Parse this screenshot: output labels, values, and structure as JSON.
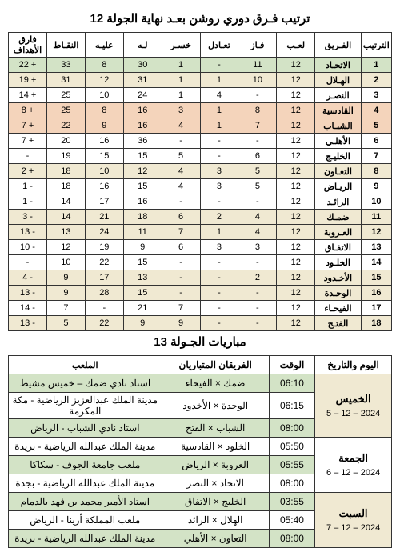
{
  "standingsTitle": "ترتيب فـرق دوري روشن بعـد نهاية الجولة 12",
  "fixturesTitle": "مباريات الجـولة 13",
  "colors": {
    "green": "#d3e3c6",
    "cream": "#f0e9d2",
    "peach": "#f4d4bb"
  },
  "standingsHeaders": [
    "الترتيب",
    "الفـريق",
    "لعـب",
    "فـاز",
    "تعـادل",
    "خسـر",
    "لـه",
    "عليـه",
    "النقـاط",
    "فارق الأهداف"
  ],
  "standings": [
    {
      "rank": "1",
      "team": "الاتحـاد",
      "p": "12",
      "w": "11",
      "d": "-",
      "l": "1",
      "gf": "30",
      "ga": "8",
      "pts": "33",
      "gd": "+ 22",
      "hl": "green"
    },
    {
      "rank": "2",
      "team": "الهـلال",
      "p": "12",
      "w": "10",
      "d": "1",
      "l": "1",
      "gf": "31",
      "ga": "12",
      "pts": "31",
      "gd": "+ 19",
      "hl": "cream"
    },
    {
      "rank": "3",
      "team": "النصـر",
      "p": "12",
      "w": "-",
      "d": "4",
      "l": "1",
      "gf": "24",
      "ga": "10",
      "pts": "25",
      "gd": "+ 14",
      "hl": ""
    },
    {
      "rank": "4",
      "team": "القادسية",
      "p": "12",
      "w": "8",
      "d": "1",
      "l": "3",
      "gf": "16",
      "ga": "8",
      "pts": "25",
      "gd": "+ 8",
      "hl": "peach"
    },
    {
      "rank": "5",
      "team": "الشبـاب",
      "p": "12",
      "w": "7",
      "d": "1",
      "l": "4",
      "gf": "16",
      "ga": "9",
      "pts": "22",
      "gd": "+ 7",
      "hl": "peach"
    },
    {
      "rank": "6",
      "team": "الأهلـي",
      "p": "12",
      "w": "-",
      "d": "-",
      "l": "-",
      "gf": "36",
      "ga": "16",
      "pts": "20",
      "gd": "+ 7",
      "hl": ""
    },
    {
      "rank": "7",
      "team": "الخليـج",
      "p": "12",
      "w": "6",
      "d": "-",
      "l": "5",
      "gf": "15",
      "ga": "15",
      "pts": "19",
      "gd": "-",
      "hl": ""
    },
    {
      "rank": "8",
      "team": "التعـاون",
      "p": "12",
      "w": "5",
      "d": "3",
      "l": "4",
      "gf": "12",
      "ga": "10",
      "pts": "18",
      "gd": "+ 2",
      "hl": "cream"
    },
    {
      "rank": "9",
      "team": "الريـاض",
      "p": "12",
      "w": "5",
      "d": "3",
      "l": "4",
      "gf": "15",
      "ga": "16",
      "pts": "18",
      "gd": "- 1",
      "hl": ""
    },
    {
      "rank": "10",
      "team": "الرائـد",
      "p": "12",
      "w": "-",
      "d": "-",
      "l": "-",
      "gf": "16",
      "ga": "17",
      "pts": "14",
      "gd": "- 1",
      "hl": ""
    },
    {
      "rank": "11",
      "team": "ضمـك",
      "p": "12",
      "w": "4",
      "d": "2",
      "l": "6",
      "gf": "18",
      "ga": "21",
      "pts": "14",
      "gd": "- 3",
      "hl": "cream"
    },
    {
      "rank": "12",
      "team": "العـروبة",
      "p": "12",
      "w": "4",
      "d": "1",
      "l": "7",
      "gf": "11",
      "ga": "24",
      "pts": "13",
      "gd": "- 13",
      "hl": "cream"
    },
    {
      "rank": "13",
      "team": "الاتفـاق",
      "p": "12",
      "w": "3",
      "d": "3",
      "l": "6",
      "gf": "9",
      "ga": "19",
      "pts": "12",
      "gd": "- 10",
      "hl": ""
    },
    {
      "rank": "14",
      "team": "الخلـود",
      "p": "12",
      "w": "-",
      "d": "-",
      "l": "-",
      "gf": "15",
      "ga": "22",
      "pts": "10",
      "gd": "-",
      "hl": ""
    },
    {
      "rank": "15",
      "team": "الأخـدود",
      "p": "12",
      "w": "2",
      "d": "-",
      "l": "-",
      "gf": "13",
      "ga": "17",
      "pts": "9",
      "gd": "- 4",
      "hl": "cream"
    },
    {
      "rank": "16",
      "team": "الوحـدة",
      "p": "12",
      "w": "-",
      "d": "-",
      "l": "-",
      "gf": "15",
      "ga": "28",
      "pts": "9",
      "gd": "- 13",
      "hl": "cream"
    },
    {
      "rank": "17",
      "team": "الفيحـاء",
      "p": "12",
      "w": "-",
      "d": "-",
      "l": "7",
      "gf": "21",
      "ga": "-",
      "pts": "7",
      "gd": "- 14",
      "hl": ""
    },
    {
      "rank": "18",
      "team": "الفتـح",
      "p": "12",
      "w": "-",
      "d": "-",
      "l": "9",
      "gf": "9",
      "ga": "22",
      "pts": "5",
      "gd": "- 13",
      "hl": "cream"
    }
  ],
  "fixturesHeaders": [
    "اليوم والتاريخ",
    "الوقت",
    "الفريقان المتباريان",
    "الملعب"
  ],
  "fixtureDays": [
    {
      "day": "الخميس",
      "date": "5 – 12 – 2024",
      "hl": "cream",
      "rows": [
        {
          "time": "06:10",
          "match": "ضمك × الفيحاء",
          "venue": "استاد نادي ضمك – خميس مشيط",
          "hl": "green"
        },
        {
          "time": "06:15",
          "match": "الوحدة × الأخدود",
          "venue": "مدينة الملك عبدالعزيز الرياضية - مكة المكرمة",
          "hl": ""
        },
        {
          "time": "08:00",
          "match": "الشباب × الفتح",
          "venue": "استاد نادي الشباب - الرياض",
          "hl": "green"
        }
      ]
    },
    {
      "day": "الجمعة",
      "date": "6 – 12 – 2024",
      "hl": "",
      "rows": [
        {
          "time": "05:50",
          "match": "الخلود × القادسية",
          "venue": "مدينة الملك عبدالله الرياضية - بريدة",
          "hl": ""
        },
        {
          "time": "05:55",
          "match": "العروبة × الرياض",
          "venue": "ملعب جامعة الجوف - سكاكا",
          "hl": "green"
        },
        {
          "time": "08:00",
          "match": "الاتحاد × النصر",
          "venue": "مدينة الملك عبدالله الرياضية - بجدة",
          "hl": ""
        }
      ]
    },
    {
      "day": "السبت",
      "date": "7 – 12 – 2024",
      "hl": "cream",
      "rows": [
        {
          "time": "03:55",
          "match": "الخليج × الاتفاق",
          "venue": "استاد الأمير محمد بن فهد بالدمام",
          "hl": "green"
        },
        {
          "time": "05:40",
          "match": "الهلال × الرائد",
          "venue": "ملعب المملكة أرينا - الرياض",
          "hl": ""
        },
        {
          "time": "08:00",
          "match": "التعاون × الأهلي",
          "venue": "مدينة الملك عبدالله الرياضية - بريدة",
          "hl": "green"
        }
      ]
    }
  ]
}
